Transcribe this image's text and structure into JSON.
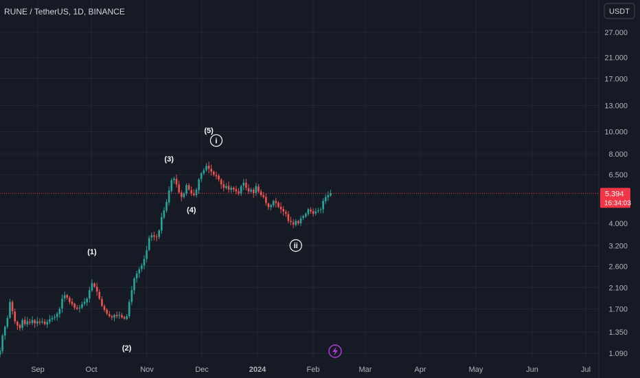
{
  "header": {
    "title": "RUNE / TetherUS, 1D, BINANCE"
  },
  "currency_button": {
    "label": "USDT"
  },
  "colors": {
    "bg": "#161a25",
    "grid": "#232734",
    "up": "#26a69a",
    "down": "#ef5350",
    "text": "#d1d4dc",
    "axis_text": "#b2b5be",
    "price_tag": "#f23645",
    "lightning": "#b23fd9"
  },
  "icons": {
    "lightning": "lightning-icon"
  },
  "chart_data": {
    "type": "candlestick",
    "scale": "log",
    "y_ticks": [
      "27.000",
      "21.000",
      "17.000",
      "13.000",
      "10.000",
      "8.000",
      "6.500",
      "5.394",
      "4.000",
      "3.200",
      "2.600",
      "2.100",
      "1.700",
      "1.350",
      "1.090"
    ],
    "x_ticks": [
      "Sep",
      "Oct",
      "Nov",
      "Dec",
      "2024",
      "Feb",
      "Mar",
      "Apr",
      "May",
      "Jun",
      "Jul"
    ],
    "last_price": {
      "value": "5.394",
      "countdown": "16:34:03"
    },
    "closes": [
      1.12,
      1.3,
      1.42,
      1.55,
      1.82,
      1.66,
      1.5,
      1.44,
      1.4,
      1.52,
      1.46,
      1.5,
      1.48,
      1.52,
      1.47,
      1.5,
      1.48,
      1.5,
      1.46,
      1.49,
      1.53,
      1.55,
      1.57,
      1.62,
      1.7,
      1.88,
      1.95,
      1.9,
      1.82,
      1.78,
      1.72,
      1.7,
      1.72,
      1.78,
      1.82,
      1.88,
      2.05,
      2.2,
      2.12,
      2.02,
      1.88,
      1.75,
      1.68,
      1.62,
      1.58,
      1.56,
      1.6,
      1.58,
      1.6,
      1.56,
      1.54,
      1.58,
      1.82,
      2.05,
      2.3,
      2.42,
      2.52,
      2.62,
      2.8,
      3.05,
      3.45,
      3.55,
      3.5,
      3.48,
      3.72,
      4.25,
      4.55,
      4.95,
      5.55,
      6.15,
      6.25,
      5.9,
      5.45,
      5.2,
      5.4,
      5.85,
      5.6,
      5.4,
      5.3,
      5.6,
      6.2,
      6.6,
      6.8,
      7.1,
      6.9,
      6.7,
      6.5,
      6.4,
      6.2,
      5.9,
      5.7,
      5.8,
      5.6,
      5.7,
      5.6,
      5.5,
      5.4,
      5.8,
      6.0,
      5.7,
      5.5,
      5.6,
      5.4,
      5.8,
      5.5,
      5.3,
      5.2,
      4.9,
      4.7,
      4.8,
      5.0,
      4.9,
      4.7,
      4.6,
      4.5,
      4.4,
      4.1,
      4.05,
      3.95,
      4.1,
      4.0,
      4.2,
      4.3,
      4.4,
      4.6,
      4.5,
      4.4,
      4.5,
      4.55,
      4.6,
      5.0,
      5.2,
      5.3,
      5.394
    ],
    "annotations": [
      {
        "text": "(1)",
        "index": 37
      },
      {
        "text": "(2)",
        "index": 51
      },
      {
        "text": "(3)",
        "index": 68
      },
      {
        "text": "(4)",
        "index": 77
      },
      {
        "text": "(5)",
        "index": 84
      },
      {
        "text": "i",
        "index": 87,
        "circled": true
      },
      {
        "text": "ii",
        "index": 119,
        "circled": true
      }
    ]
  }
}
